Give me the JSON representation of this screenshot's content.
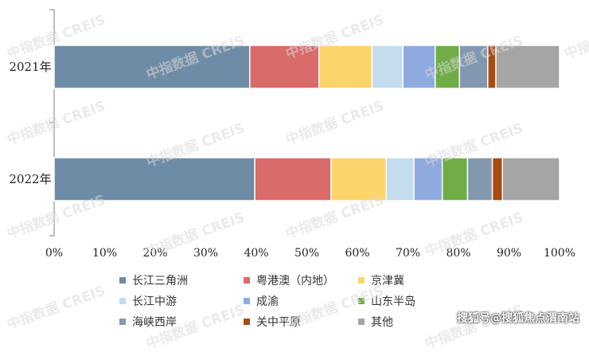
{
  "chart_data": {
    "type": "bar",
    "orientation": "horizontal",
    "stacked": true,
    "categories": [
      "2021年",
      "2022年"
    ],
    "series": [
      {
        "name": "长江三角洲",
        "color": "#6f8ca6",
        "values": [
          38.7,
          39.7
        ]
      },
      {
        "name": "粤港澳（内地）",
        "color": "#d96b6b",
        "values": [
          13.7,
          15.1
        ]
      },
      {
        "name": "京津冀",
        "color": "#fcd46c",
        "values": [
          10.5,
          10.9
        ]
      },
      {
        "name": "长江中游",
        "color": "#c4dcee",
        "values": [
          6.1,
          5.5
        ]
      },
      {
        "name": "成渝",
        "color": "#8eaadf",
        "values": [
          6.4,
          5.6
        ]
      },
      {
        "name": "山东半岛",
        "color": "#70ad47",
        "values": [
          4.8,
          5.0
        ]
      },
      {
        "name": "海峡西岸",
        "color": "#8497b0",
        "values": [
          5.6,
          4.9
        ]
      },
      {
        "name": "关中平原",
        "color": "#a84c12",
        "values": [
          1.6,
          2.0
        ]
      },
      {
        "name": "其他",
        "color": "#a5a5a5",
        "values": [
          12.6,
          11.3
        ]
      }
    ],
    "xlim": [
      0,
      100
    ],
    "xticks": [
      "0%",
      "10%",
      "20%",
      "30%",
      "40%",
      "50%",
      "60%",
      "70%",
      "80%",
      "90%",
      "100%"
    ],
    "legend_position": "bottom"
  },
  "watermark": "中指数据 CREIS",
  "credit": "搜狐号@搜狐焦点渭南站"
}
